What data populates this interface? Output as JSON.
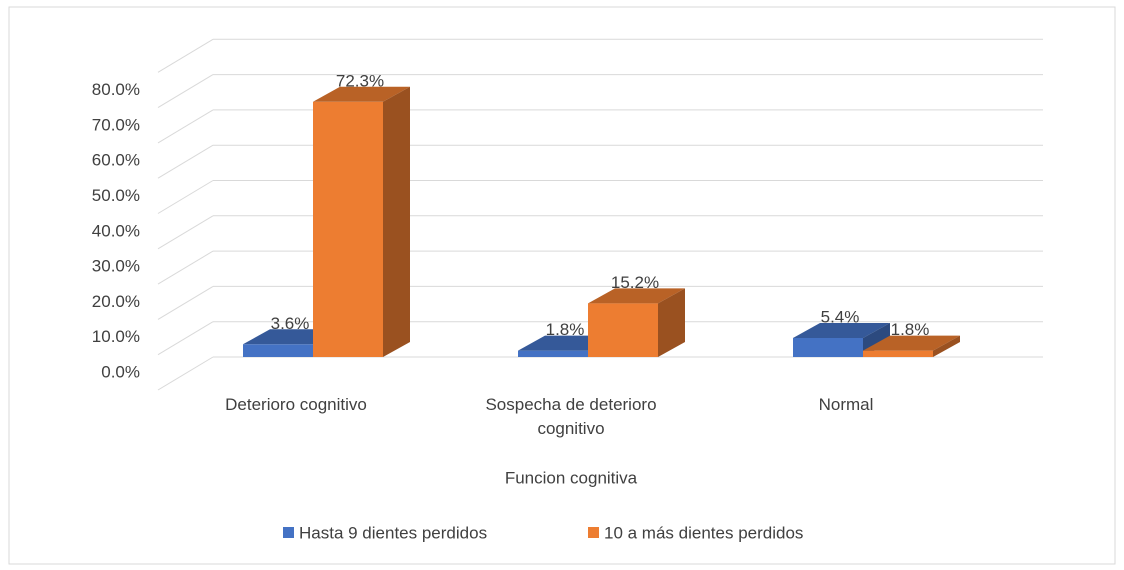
{
  "chart_data": {
    "type": "bar3d",
    "x_label": "Funcion cognitiva",
    "categories": [
      "Deterioro cognitivo",
      "Sospecha de deterioro cognitivo",
      "Normal"
    ],
    "series": [
      {
        "name": "Hasta 9 dientes perdidos",
        "color": "#4472c4",
        "values": [
          3.6,
          1.8,
          5.4
        ],
        "value_labels": [
          "3.6%",
          "1.8%",
          "5.4%"
        ]
      },
      {
        "name": "10 a más dientes perdidos",
        "color": "#ed7d31",
        "values": [
          72.3,
          15.2,
          1.8
        ],
        "value_labels": [
          "72.3%",
          "15.2%",
          "1.8%"
        ]
      }
    ],
    "ylim": [
      0,
      90
    ],
    "yticks": [
      {
        "value": 0,
        "label": "0.0%"
      },
      {
        "value": 10,
        "label": "10.0%"
      },
      {
        "value": 20,
        "label": "20.0%"
      },
      {
        "value": 30,
        "label": "30.0%"
      },
      {
        "value": 40,
        "label": "40.0%"
      },
      {
        "value": 50,
        "label": "50.0%"
      },
      {
        "value": 60,
        "label": "60.0%"
      },
      {
        "value": 70,
        "label": "70.0%"
      },
      {
        "value": 80,
        "label": "80.0%"
      }
    ],
    "grid": true,
    "legend": "bottom"
  }
}
